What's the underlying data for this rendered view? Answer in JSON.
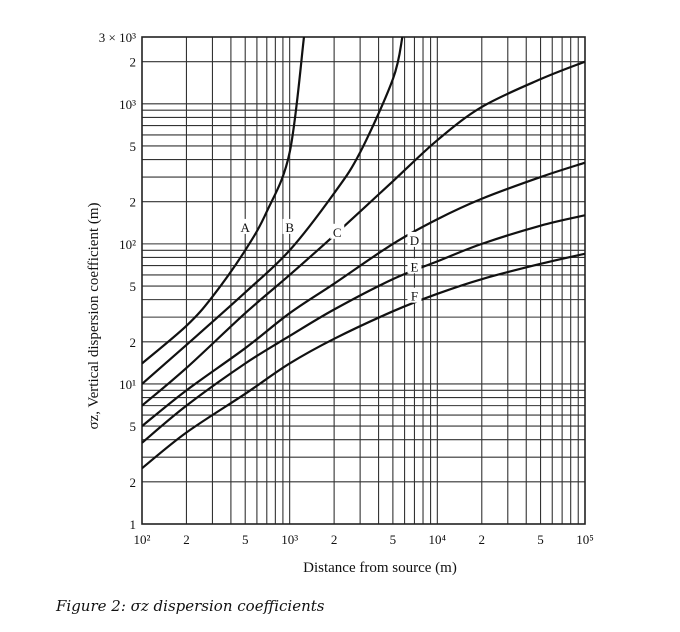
{
  "caption": "Figure 2: σz dispersion coefficients",
  "chart_data": {
    "type": "line",
    "title": "",
    "xlabel": "Distance from source (m)",
    "ylabel": "σz, Vertical dispersion coefficient (m)",
    "xscale": "log",
    "yscale": "log",
    "xlim": [
      100,
      100000
    ],
    "ylim": [
      1,
      3000
    ],
    "grid": true,
    "legend": "inline curve labels",
    "x_ticks": [
      {
        "value": 100,
        "label": "10²"
      },
      {
        "value": 200,
        "label": "2"
      },
      {
        "value": 500,
        "label": "5"
      },
      {
        "value": 1000,
        "label": "10³"
      },
      {
        "value": 2000,
        "label": "2"
      },
      {
        "value": 5000,
        "label": "5"
      },
      {
        "value": 10000,
        "label": "10⁴"
      },
      {
        "value": 20000,
        "label": "2"
      },
      {
        "value": 50000,
        "label": "5"
      },
      {
        "value": 100000,
        "label": "10⁵"
      }
    ],
    "y_ticks": [
      {
        "value": 1,
        "label": "1"
      },
      {
        "value": 2,
        "label": "2"
      },
      {
        "value": 5,
        "label": "5"
      },
      {
        "value": 10,
        "label": "10¹"
      },
      {
        "value": 20,
        "label": "2"
      },
      {
        "value": 50,
        "label": "5"
      },
      {
        "value": 100,
        "label": "10²"
      },
      {
        "value": 200,
        "label": "2"
      },
      {
        "value": 500,
        "label": "5"
      },
      {
        "value": 1000,
        "label": "10³"
      },
      {
        "value": 2000,
        "label": "2"
      },
      {
        "value": 3000,
        "label": "3 × 10³"
      }
    ],
    "series": [
      {
        "name": "A",
        "label_at": [
          500,
          130
        ],
        "x": [
          100,
          200,
          300,
          500,
          700,
          1000,
          1250
        ],
        "y": [
          14,
          26,
          42,
          90,
          170,
          450,
          3000
        ]
      },
      {
        "name": "B",
        "label_at": [
          1000,
          130
        ],
        "x": [
          100,
          200,
          500,
          1000,
          2000,
          3000,
          5000,
          5800
        ],
        "y": [
          10,
          19,
          45,
          90,
          230,
          450,
          1500,
          3000
        ]
      },
      {
        "name": "C",
        "label_at": [
          2100,
          120
        ],
        "x": [
          100,
          200,
          500,
          1000,
          2000,
          5000,
          10000,
          20000,
          50000,
          100000
        ],
        "y": [
          7,
          13,
          32,
          60,
          115,
          280,
          550,
          950,
          1500,
          2000
        ]
      },
      {
        "name": "D",
        "label_at": [
          7000,
          105
        ],
        "x": [
          100,
          200,
          500,
          1000,
          2000,
          5000,
          10000,
          20000,
          50000,
          100000
        ],
        "y": [
          5,
          9,
          18,
          32,
          52,
          100,
          150,
          210,
          300,
          380
        ]
      },
      {
        "name": "E",
        "label_at": [
          7000,
          68
        ],
        "x": [
          100,
          200,
          500,
          1000,
          2000,
          5000,
          10000,
          20000,
          50000,
          100000
        ],
        "y": [
          3.8,
          7,
          14,
          22,
          34,
          56,
          75,
          100,
          135,
          160
        ]
      },
      {
        "name": "F",
        "label_at": [
          7000,
          42
        ],
        "x": [
          100,
          200,
          500,
          1000,
          2000,
          5000,
          10000,
          20000,
          50000,
          100000
        ],
        "y": [
          2.5,
          4.5,
          8.5,
          14,
          21,
          33,
          44,
          56,
          72,
          85
        ]
      }
    ]
  }
}
